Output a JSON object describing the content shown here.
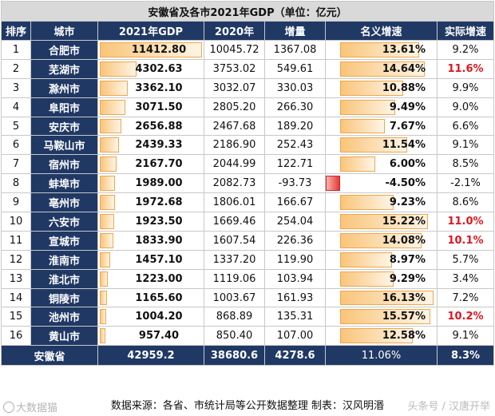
{
  "title": "安徽省及各市2021年GDP（单位：亿元）",
  "headers": [
    "排序",
    "城市",
    "2021年GDP",
    "2020年",
    "增量",
    "名义增速",
    "实际增速"
  ],
  "rows": [
    {
      "rank": "1",
      "city": "合肥市",
      "gdp2021": "11412.80",
      "gdp2020": "10045.72",
      "incr": "1367.08",
      "nominal": "13.61%",
      "real": "9.2%"
    },
    {
      "rank": "2",
      "city": "芜湖市",
      "gdp2021": "4302.63",
      "gdp2020": "3753.02",
      "incr": "549.61",
      "nominal": "14.64%",
      "real": "11.6%"
    },
    {
      "rank": "3",
      "city": "滁州市",
      "gdp2021": "3362.10",
      "gdp2020": "3032.07",
      "incr": "330.03",
      "nominal": "10.88%",
      "real": "9.9%"
    },
    {
      "rank": "4",
      "city": "阜阳市",
      "gdp2021": "3071.50",
      "gdp2020": "2805.20",
      "incr": "266.30",
      "nominal": "9.49%",
      "real": "9.0%"
    },
    {
      "rank": "5",
      "city": "安庆市",
      "gdp2021": "2656.88",
      "gdp2020": "2467.68",
      "incr": "189.20",
      "nominal": "7.67%",
      "real": "6.6%"
    },
    {
      "rank": "6",
      "city": "马鞍山市",
      "gdp2021": "2439.33",
      "gdp2020": "2186.90",
      "incr": "252.43",
      "nominal": "11.54%",
      "real": "9.1%"
    },
    {
      "rank": "7",
      "city": "宿州市",
      "gdp2021": "2167.70",
      "gdp2020": "2044.99",
      "incr": "122.71",
      "nominal": "6.00%",
      "real": "8.5%"
    },
    {
      "rank": "8",
      "city": "蚌埠市",
      "gdp2021": "1989.00",
      "gdp2020": "2082.73",
      "incr": "-93.73",
      "nominal": "-4.50%",
      "real": "-2.1%"
    },
    {
      "rank": "9",
      "city": "亳州市",
      "gdp2021": "1972.68",
      "gdp2020": "1806.01",
      "incr": "166.67",
      "nominal": "9.23%",
      "real": "8.6%"
    },
    {
      "rank": "10",
      "city": "六安市",
      "gdp2021": "1923.50",
      "gdp2020": "1669.46",
      "incr": "254.04",
      "nominal": "15.22%",
      "real": "11.0%"
    },
    {
      "rank": "11",
      "city": "宣城市",
      "gdp2021": "1833.90",
      "gdp2020": "1607.54",
      "incr": "226.36",
      "nominal": "14.08%",
      "real": "10.1%"
    },
    {
      "rank": "12",
      "city": "淮南市",
      "gdp2021": "1457.10",
      "gdp2020": "1337.20",
      "incr": "119.90",
      "nominal": "8.97%",
      "real": "5.7%"
    },
    {
      "rank": "13",
      "city": "淮北市",
      "gdp2021": "1223.00",
      "gdp2020": "1119.06",
      "incr": "103.94",
      "nominal": "9.29%",
      "real": "3.4%"
    },
    {
      "rank": "14",
      "city": "铜陵市",
      "gdp2021": "1165.60",
      "gdp2020": "1003.67",
      "incr": "161.93",
      "nominal": "16.13%",
      "real": "7.2%"
    },
    {
      "rank": "15",
      "city": "池州市",
      "gdp2021": "1004.20",
      "gdp2020": "868.89",
      "incr": "135.31",
      "nominal": "15.57%",
      "real": "10.2%"
    },
    {
      "rank": "16",
      "city": "黄山市",
      "gdp2021": "957.40",
      "gdp2020": "850.40",
      "incr": "107.00",
      "nominal": "12.58%",
      "real": "9.1%"
    }
  ],
  "total": {
    "city": "安徽省",
    "gdp2021": "42959.2",
    "gdp2020": "38680.6",
    "incr": "4278.6",
    "nominal": "11.06%",
    "real": "8.3%"
  },
  "footer": "数据来源：各省、市统计局等公开数据整理   制表：汉风明湣",
  "watermark_left": "大数据猫",
  "watermark_right": "头条号 / 汉唐开举",
  "colors": {
    "header_bg": "#203864",
    "bar_fill": "#f9c57a",
    "negative_bar": "#e53935",
    "highlight_text": "#e0151f"
  },
  "scales": {
    "gdp_max": 11412.8,
    "nominal_max": 16.13,
    "nominal_min": -4.5
  }
}
